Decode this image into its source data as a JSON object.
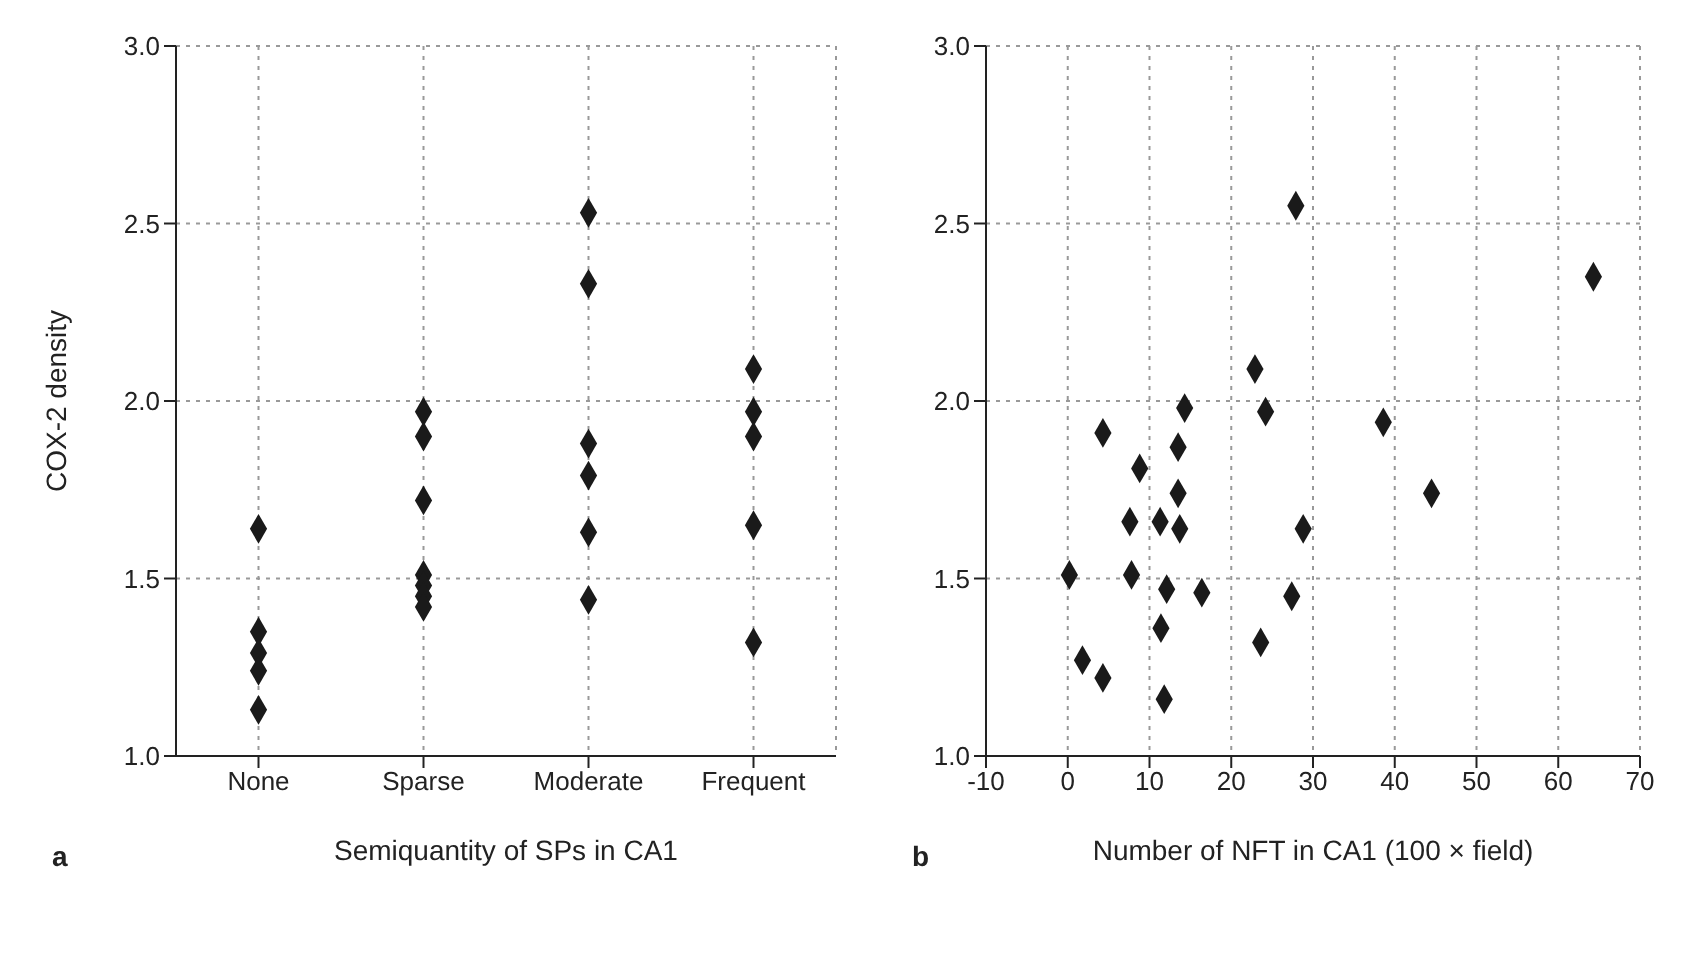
{
  "chart_data": [
    {
      "type": "scatter",
      "categories": [
        "None",
        "Sparse",
        "Moderate",
        "Frequent"
      ],
      "xlabel": "Semiquantity of SPs in CA1",
      "ylabel": "COX-2 density",
      "ylim": [
        1,
        3
      ],
      "yticks": [
        {
          "value": 1,
          "label": "1.0"
        },
        {
          "value": 1.5,
          "label": "1.5"
        },
        {
          "value": 2,
          "label": "2.0"
        },
        {
          "value": 2.5,
          "label": "2.5"
        },
        {
          "value": 3,
          "label": "3.0"
        }
      ],
      "grid": true,
      "marker": "diamond",
      "annotations": [
        "a"
      ],
      "series": [
        {
          "color": "#1a1a1a",
          "x": [
            "None",
            "None",
            "None",
            "None",
            "None",
            "Sparse",
            "Sparse",
            "Sparse",
            "Sparse",
            "Sparse",
            "Sparse",
            "Sparse",
            "Moderate",
            "Moderate",
            "Moderate",
            "Moderate",
            "Moderate",
            "Moderate",
            "Frequent",
            "Frequent",
            "Frequent",
            "Frequent",
            "Frequent"
          ],
          "values": [
            1.64,
            1.35,
            1.29,
            1.24,
            1.13,
            1.97,
            1.9,
            1.72,
            1.51,
            1.48,
            1.45,
            1.42,
            2.53,
            2.33,
            1.88,
            1.79,
            1.63,
            1.44,
            2.09,
            1.97,
            1.9,
            1.65,
            1.32
          ]
        }
      ]
    },
    {
      "type": "scatter",
      "xlabel": "Number of NFT in CA1 (100 × field)",
      "xlim": [
        -10,
        70
      ],
      "xticks": [
        -10,
        0,
        10,
        20,
        30,
        40,
        50,
        60,
        70
      ],
      "ylim": [
        1,
        3
      ],
      "yticks": [
        {
          "value": 1,
          "label": "1.0"
        },
        {
          "value": 1.5,
          "label": "1.5"
        },
        {
          "value": 2,
          "label": "2.0"
        },
        {
          "value": 2.5,
          "label": "2.5"
        },
        {
          "value": 3,
          "label": "3.0"
        }
      ],
      "grid": true,
      "marker": "diamond",
      "annotations": [
        "b"
      ],
      "series": [
        {
          "color": "#1a1a1a",
          "x": [
            64.3,
            27.9,
            22.9,
            24.2,
            38.6,
            4.3,
            14.3,
            13.5,
            8.8,
            13.5,
            44.5,
            7.6,
            11.3,
            13.7,
            28.8,
            0.2,
            7.8,
            12.1,
            16.4,
            27.4,
            11.4,
            23.6,
            1.8,
            4.3,
            11.8
          ],
          "values": [
            2.35,
            2.55,
            2.09,
            1.97,
            1.94,
            1.91,
            1.98,
            1.87,
            1.81,
            1.74,
            1.74,
            1.66,
            1.66,
            1.64,
            1.64,
            1.51,
            1.51,
            1.47,
            1.46,
            1.45,
            1.36,
            1.32,
            1.27,
            1.22,
            1.16
          ]
        }
      ]
    }
  ]
}
